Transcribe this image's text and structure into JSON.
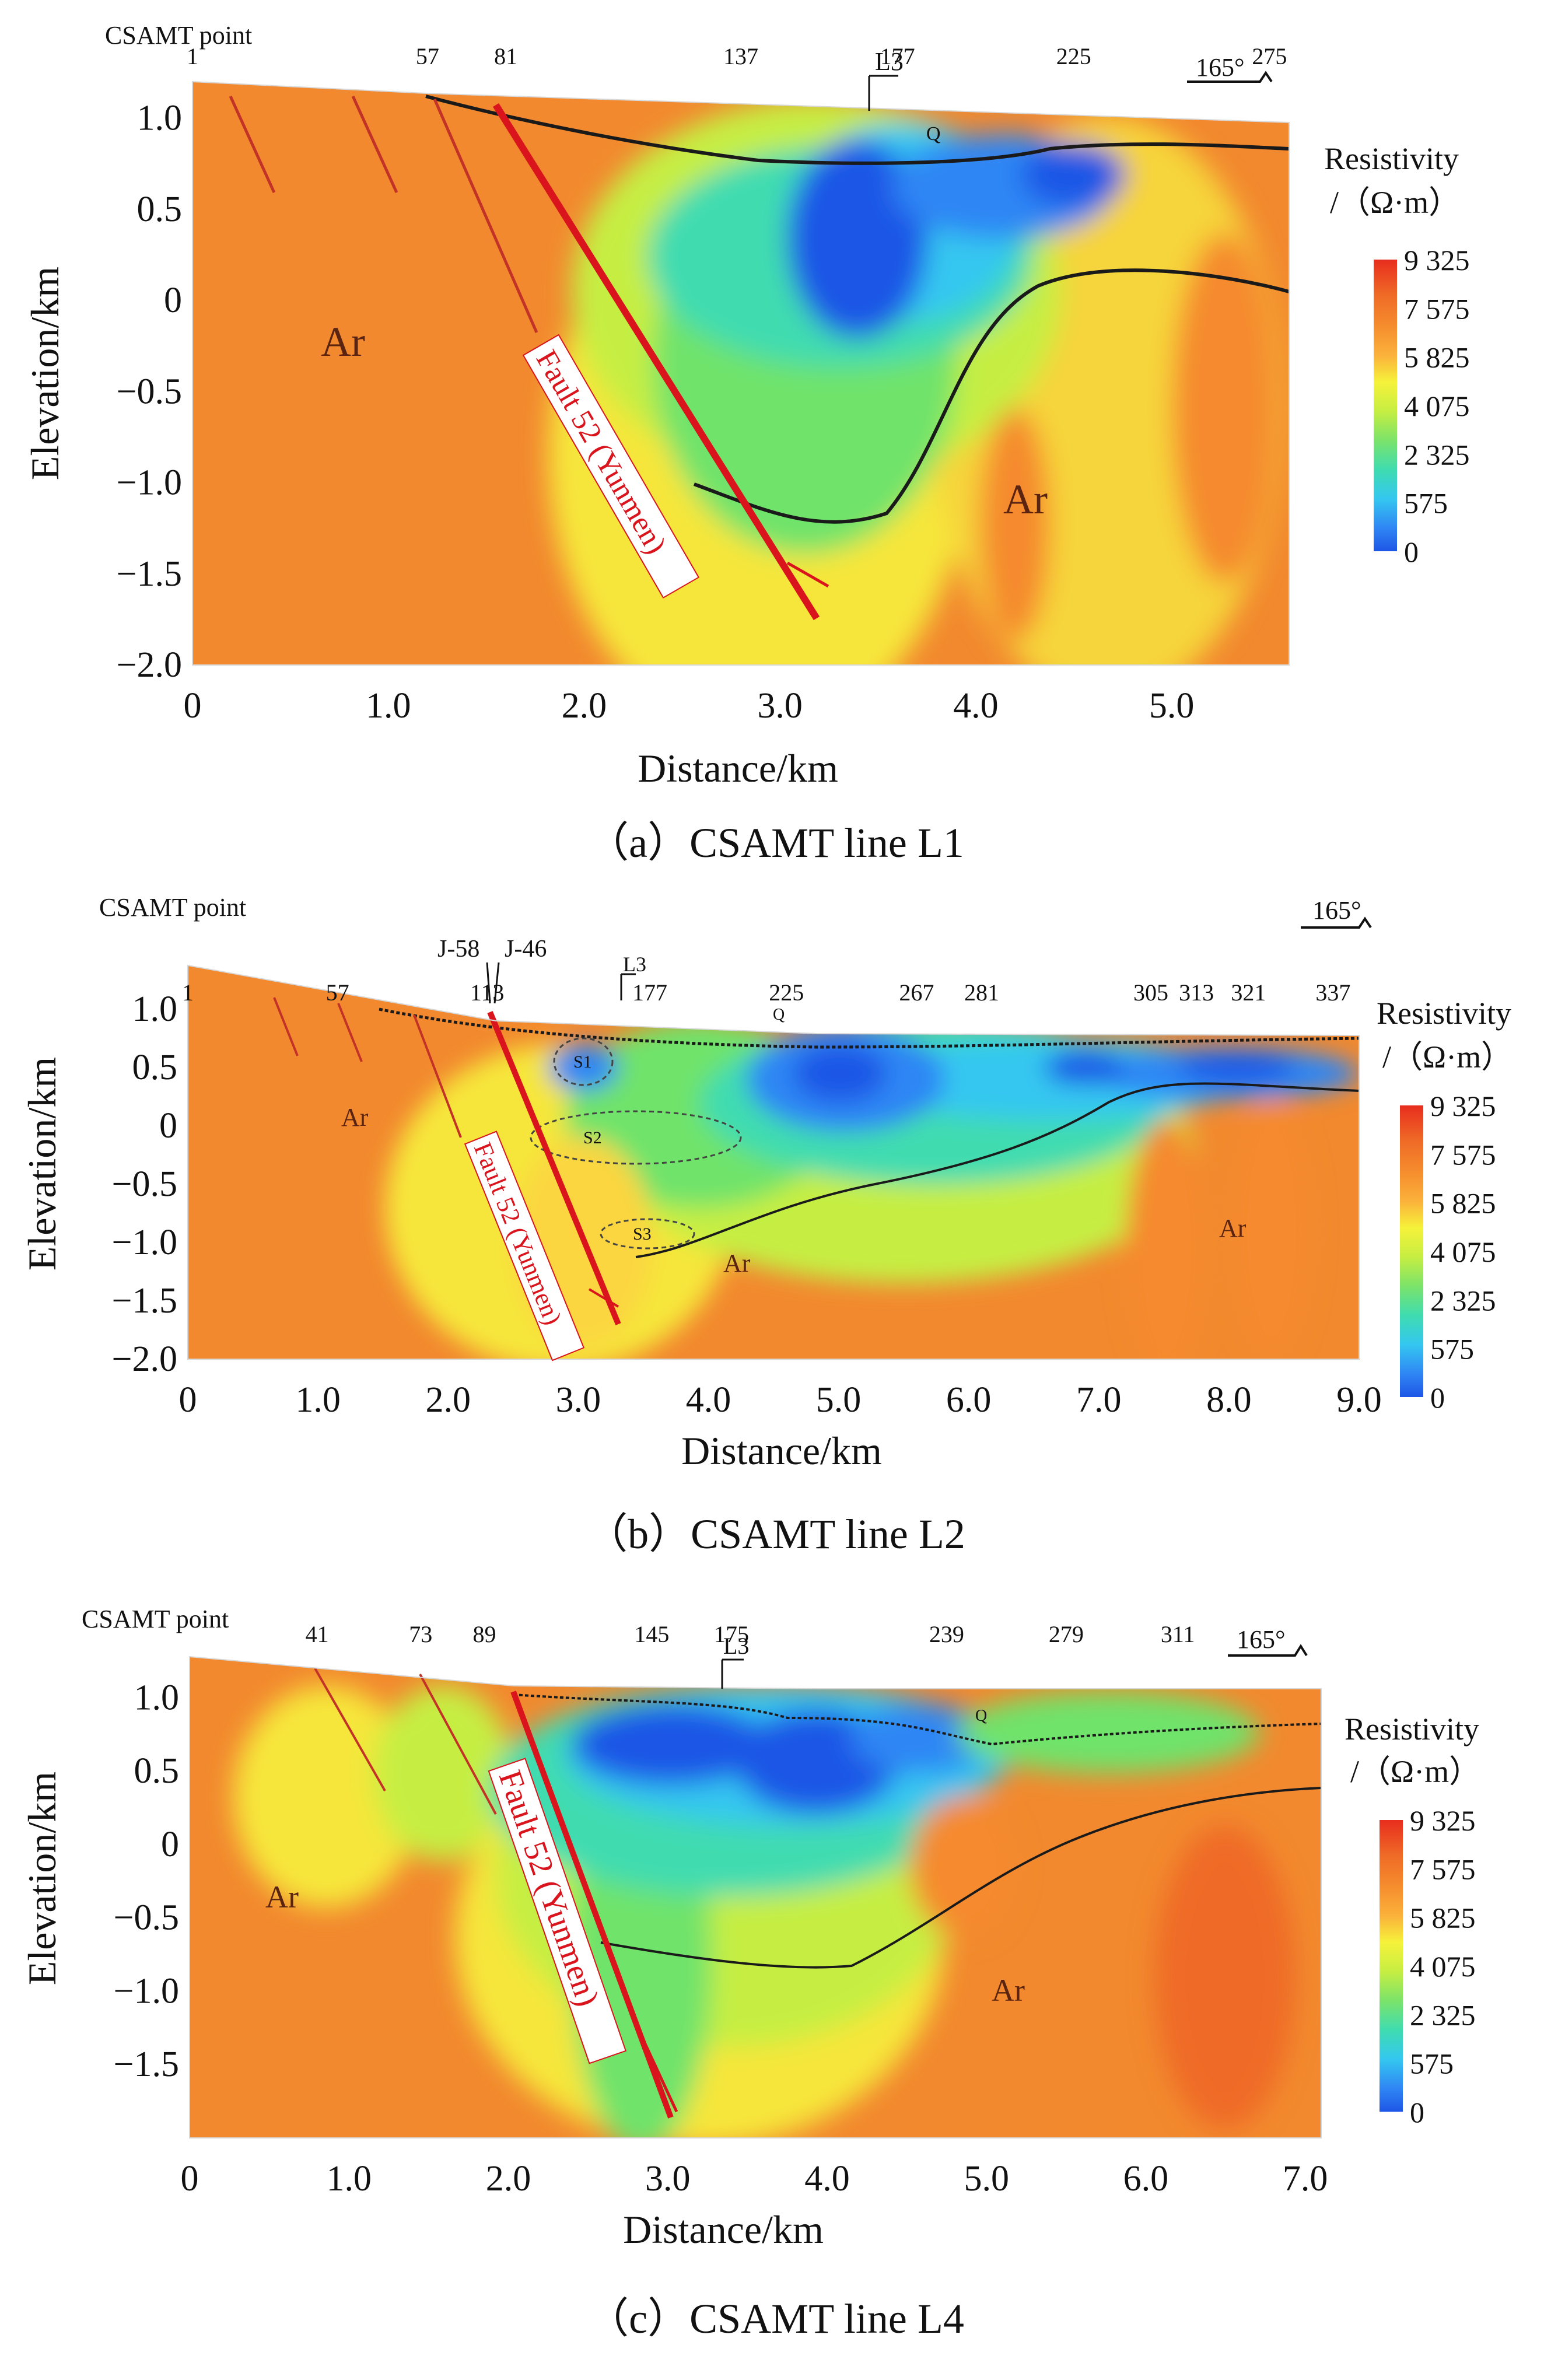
{
  "figure": {
    "colors": {
      "ramp": [
        "#1e56e6",
        "#2f86f4",
        "#34c7f0",
        "#3fdcb0",
        "#7be36a",
        "#c6ee42",
        "#f6f23a",
        "#fbd640",
        "#fbb23b",
        "#f58a2d",
        "#ef6a26",
        "#e82d1e"
      ],
      "fault": "#d9141c",
      "line": "#1a1a1a",
      "ar_bg": "#f2892e"
    },
    "legend": {
      "title_line1": "Resistivity",
      "title_line2": "/（Ω·m）",
      "ticks": [
        "9 325",
        "7 575",
        "5 825",
        "4 075",
        "2 325",
        "575",
        "0"
      ]
    }
  },
  "panels": [
    {
      "caption": "（a）CSAMT line L1",
      "csamt_label": "CSAMT point",
      "azimuth": "165°",
      "fault_label": "Fault 52 (Yunmen)",
      "unit_labels": [
        "Ar",
        "Ar"
      ],
      "q_label": "Q",
      "subunits": []
    },
    {
      "caption": "（b）CSAMT line L2",
      "csamt_label": "CSAMT point",
      "azimuth": "165°",
      "fault_label": "Fault 52 (Yunmen)",
      "unit_labels": [
        "Ar",
        "Ar",
        "Ar"
      ],
      "q_label": "Q",
      "subunits": [
        "S1",
        "S2",
        "S3"
      ],
      "wells": [
        "J-58",
        "J-46"
      ]
    },
    {
      "caption": "（c）CSAMT line L4",
      "csamt_label": "CSAMT point",
      "azimuth": "165°",
      "fault_label": "Fault 52 (Yunmen)",
      "unit_labels": [
        "Ar",
        "Ar"
      ],
      "q_label": "Q",
      "subunits": []
    }
  ],
  "chart_data": [
    {
      "type": "heatmap",
      "title": "（a）CSAMT line L1",
      "xlabel": "Distance/km",
      "ylabel": "Elevation/km",
      "xlim": [
        0,
        5.6
      ],
      "ylim": [
        -2.0,
        1.2
      ],
      "x_ticks": [
        "0",
        "1.0",
        "2.0",
        "3.0",
        "4.0",
        "5.0"
      ],
      "x_tick_values": [
        0,
        1,
        2,
        3,
        4,
        5
      ],
      "y_ticks": [
        "1.0",
        "0.5",
        "0",
        "−0.5",
        "−1.0",
        "−1.5",
        "−2.0"
      ],
      "y_tick_values": [
        1.0,
        0.5,
        0,
        -0.5,
        -1.0,
        -1.5,
        -2.0
      ],
      "points": [
        "1",
        "57",
        "81",
        "137",
        "177",
        "225",
        "275"
      ],
      "point_positions_km": [
        0,
        1.2,
        1.6,
        2.8,
        3.6,
        4.5,
        5.5
      ],
      "l3_point": "177",
      "l3_label": "L3",
      "colorbar": {
        "label": "Resistivity /（Ω·m）",
        "ticks": [
          9325,
          7575,
          5825,
          4075,
          2325,
          575,
          0
        ]
      }
    },
    {
      "type": "heatmap",
      "title": "（b）CSAMT line L2",
      "xlabel": "Distance/km",
      "ylabel": "Elevation/km",
      "xlim": [
        0,
        9.0
      ],
      "ylim": [
        -2.0,
        1.4
      ],
      "x_ticks": [
        "0",
        "1.0",
        "2.0",
        "3.0",
        "4.0",
        "5.0",
        "6.0",
        "7.0",
        "8.0",
        "9.0"
      ],
      "x_tick_values": [
        0,
        1,
        2,
        3,
        4,
        5,
        6,
        7,
        8,
        9
      ],
      "y_ticks": [
        "1.0",
        "0.5",
        "0",
        "−0.5",
        "−1.0",
        "−1.5",
        "−2.0"
      ],
      "y_tick_values": [
        1.0,
        0.5,
        0,
        -0.5,
        -1.0,
        -1.5,
        -2.0
      ],
      "points": [
        "1",
        "57",
        "113",
        "177",
        "225",
        "267",
        "281",
        "305",
        "313",
        "321",
        "337"
      ],
      "point_positions_km": [
        0,
        1.15,
        2.3,
        3.55,
        4.6,
        5.6,
        6.1,
        7.4,
        7.75,
        8.15,
        8.8
      ],
      "l3_point": "177",
      "l3_label": "L3",
      "colorbar": {
        "label": "Resistivity /（Ω·m）",
        "ticks": [
          9325,
          7575,
          5825,
          4075,
          2325,
          575,
          0
        ]
      }
    },
    {
      "type": "heatmap",
      "title": "（c）CSAMT line L4",
      "xlabel": "Distance/km",
      "ylabel": "Elevation/km",
      "xlim": [
        0,
        7.1
      ],
      "ylim": [
        -2.0,
        1.3
      ],
      "x_ticks": [
        "0",
        "1.0",
        "2.0",
        "3.0",
        "4.0",
        "5.0",
        "6.0",
        "7.0"
      ],
      "x_tick_values": [
        0,
        1,
        2,
        3,
        4,
        5,
        6,
        7
      ],
      "y_ticks": [
        "1.0",
        "0.5",
        "0",
        "−0.5",
        "−1.0",
        "−1.5"
      ],
      "y_tick_values": [
        1.0,
        0.5,
        0,
        -0.5,
        -1.0,
        -1.5
      ],
      "points": [
        "41",
        "73",
        "89",
        "145",
        "175",
        "239",
        "279",
        "311"
      ],
      "point_positions_km": [
        0.8,
        1.45,
        1.85,
        2.9,
        3.4,
        4.75,
        5.5,
        6.2
      ],
      "l3_point": "175",
      "l3_label": "L3",
      "colorbar": {
        "label": "Resistivity /（Ω·m）",
        "ticks": [
          9325,
          7575,
          5825,
          4075,
          2325,
          575,
          0
        ]
      }
    }
  ]
}
